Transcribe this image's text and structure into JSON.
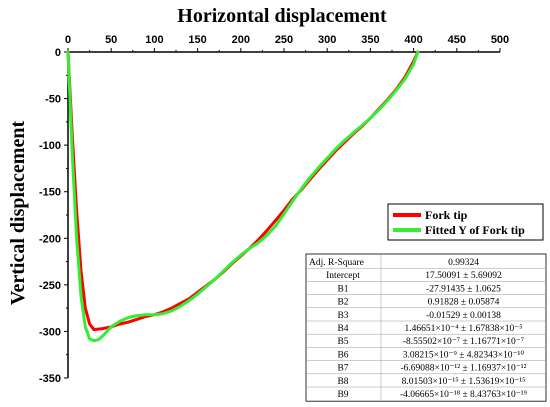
{
  "chart_data": {
    "type": "line",
    "title": "Horizontal displacement",
    "xlabel": "",
    "ylabel": "Vertical displacement",
    "xlim": [
      0,
      500
    ],
    "ylim": [
      -350,
      0
    ],
    "x_ticks": [
      "0",
      "50",
      "100",
      "150",
      "200",
      "250",
      "300",
      "350",
      "400",
      "450",
      "500"
    ],
    "y_ticks": [
      "0",
      "-50",
      "-100",
      "-150",
      "-200",
      "-250",
      "-300",
      "-350"
    ],
    "x_axis_position": "top",
    "colors": {
      "fork_tip": "#ff0000",
      "fitted": "#33ee33"
    },
    "series": [
      {
        "name": "Fork tip",
        "color": "#ff0000",
        "x": [
          0,
          5,
          10,
          15,
          20,
          25,
          30,
          40,
          50,
          60,
          70,
          80,
          90,
          100,
          110,
          120,
          130,
          140,
          150,
          160,
          170,
          180,
          190,
          200,
          210,
          220,
          230,
          240,
          250,
          260,
          270,
          280,
          290,
          300,
          310,
          320,
          330,
          340,
          350,
          360,
          370,
          380,
          390,
          400,
          405
        ],
        "y": [
          0,
          -90,
          -170,
          -235,
          -275,
          -292,
          -298,
          -297,
          -295,
          -292,
          -290,
          -287,
          -284,
          -282,
          -279,
          -275,
          -270,
          -265,
          -258,
          -251,
          -244,
          -236,
          -227,
          -219,
          -211,
          -202,
          -192,
          -181,
          -170,
          -158,
          -148,
          -137,
          -126,
          -116,
          -106,
          -97,
          -88,
          -80,
          -71,
          -61,
          -51,
          -40,
          -27,
          -10,
          0
        ]
      },
      {
        "name": "Fitted Y of Fork tip",
        "color": "#33ee33",
        "x": [
          0,
          5,
          10,
          15,
          20,
          25,
          30,
          35,
          40,
          45,
          50,
          60,
          70,
          80,
          90,
          100,
          110,
          120,
          130,
          140,
          150,
          160,
          170,
          180,
          190,
          200,
          210,
          220,
          230,
          240,
          250,
          260,
          270,
          280,
          290,
          300,
          310,
          320,
          330,
          340,
          350,
          360,
          370,
          380,
          390,
          400,
          405
        ],
        "y": [
          0,
          -110,
          -200,
          -262,
          -295,
          -308,
          -310,
          -309,
          -305,
          -300,
          -295,
          -289,
          -285,
          -283,
          -282,
          -282,
          -281,
          -278,
          -273,
          -267,
          -260,
          -252,
          -244,
          -235,
          -226,
          -218,
          -211,
          -205,
          -197,
          -187,
          -174,
          -160,
          -147,
          -135,
          -124,
          -114,
          -104,
          -95,
          -87,
          -79,
          -71,
          -62,
          -52,
          -41,
          -29,
          -13,
          0
        ]
      }
    ],
    "legend_position": "right",
    "stats_table": [
      {
        "label": "Adj. R-Square",
        "value": "0.99324"
      },
      {
        "label": "Intercept",
        "value": "17.50091 ± 5.69092"
      },
      {
        "label": "B1",
        "value": "-27.91435 ± 1.0625"
      },
      {
        "label": "B2",
        "value": "0.91828 ± 0.05874"
      },
      {
        "label": "B3",
        "value": "-0.01529 ± 0.00138"
      },
      {
        "label": "B4",
        "value": "1.46651×10⁻⁴ ± 1.67838×10⁻⁵"
      },
      {
        "label": "B5",
        "value": "-8.55502×10⁻⁷ ± 1.16771×10⁻⁷"
      },
      {
        "label": "B6",
        "value": "3.08215×10⁻⁹ ± 4.82343×10⁻¹⁰"
      },
      {
        "label": "B7",
        "value": "-6.69088×10⁻¹² ± 1.16937×10⁻¹²"
      },
      {
        "label": "B8",
        "value": "8.01503×10⁻¹⁵ ± 1.53619×10⁻¹⁵"
      },
      {
        "label": "B9",
        "value": "-4.06665×10⁻¹⁸ ± 8.43763×10⁻¹⁹"
      }
    ]
  }
}
